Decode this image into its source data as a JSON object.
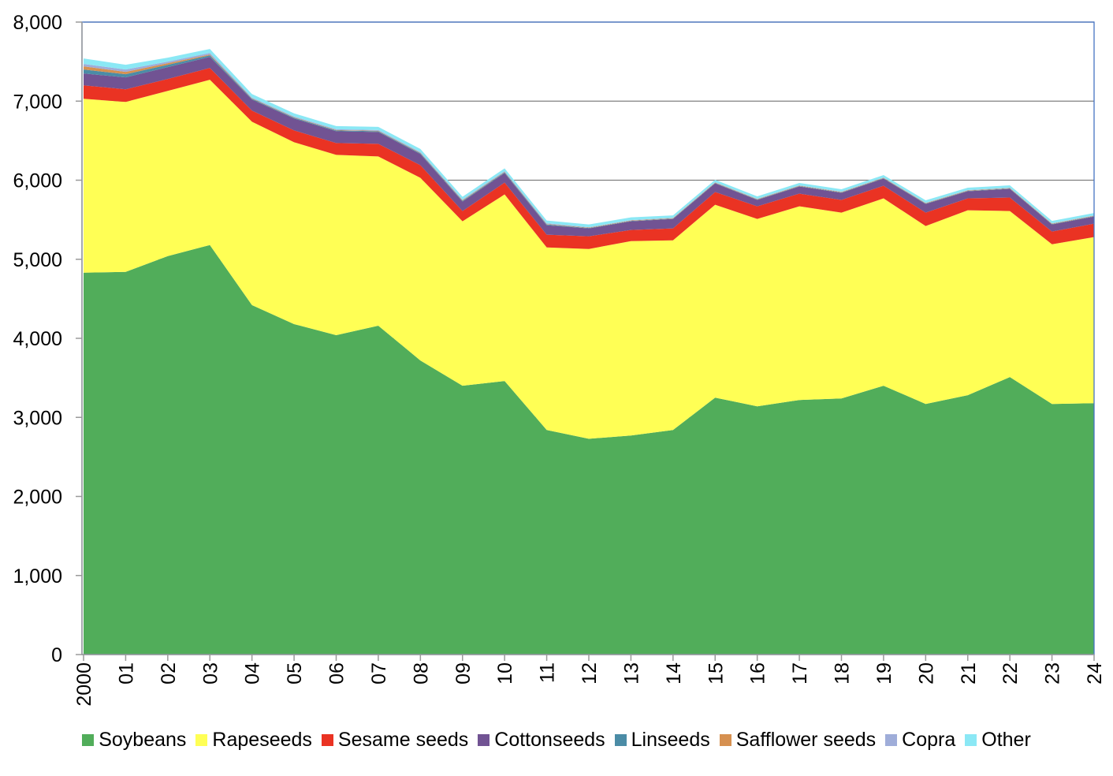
{
  "chart_data": {
    "type": "area",
    "stacked": true,
    "title": "",
    "xlabel": "",
    "ylabel": "",
    "x": [
      "2000",
      "01",
      "02",
      "03",
      "04",
      "05",
      "06",
      "07",
      "08",
      "09",
      "10",
      "11",
      "12",
      "13",
      "14",
      "15",
      "16",
      "17",
      "18",
      "19",
      "20",
      "21",
      "22",
      "23",
      "24"
    ],
    "ylim": [
      0,
      8000
    ],
    "yticks": [
      "0",
      "1,000",
      "2,000",
      "3,000",
      "4,000",
      "5,000",
      "6,000",
      "7,000",
      "8,000"
    ],
    "grid": true,
    "legend_position": "bottom",
    "series": [
      {
        "name": "Soybeans",
        "color": "#51ad5a",
        "values": [
          4830,
          4840,
          5040,
          5180,
          4420,
          4180,
          4040,
          4160,
          3720,
          3400,
          3460,
          2840,
          2730,
          2770,
          2840,
          3250,
          3140,
          3220,
          3240,
          3400,
          3170,
          3280,
          3510,
          3170,
          3180
        ]
      },
      {
        "name": "Rapeseeds",
        "color": "#ffff55",
        "values": [
          2200,
          2150,
          2090,
          2090,
          2320,
          2300,
          2280,
          2140,
          2310,
          2080,
          2360,
          2310,
          2400,
          2460,
          2400,
          2440,
          2370,
          2450,
          2350,
          2370,
          2250,
          2340,
          2100,
          2020,
          2100
        ]
      },
      {
        "name": "Sesame seeds",
        "color": "#ea3323",
        "values": [
          170,
          160,
          150,
          150,
          140,
          150,
          150,
          160,
          160,
          130,
          150,
          160,
          160,
          140,
          150,
          160,
          160,
          160,
          160,
          160,
          170,
          150,
          170,
          160,
          170
        ]
      },
      {
        "name": "Cottonseeds",
        "color": "#715393",
        "values": [
          150,
          150,
          150,
          140,
          140,
          150,
          150,
          150,
          140,
          120,
          120,
          120,
          100,
          110,
          120,
          110,
          80,
          90,
          90,
          90,
          110,
          90,
          110,
          90,
          90
        ]
      },
      {
        "name": "Linseeds",
        "color": "#4b8ca6",
        "values": [
          50,
          40,
          30,
          20,
          10,
          10,
          10,
          10,
          10,
          10,
          10,
          10,
          5,
          5,
          5,
          5,
          5,
          5,
          5,
          5,
          5,
          5,
          5,
          5,
          5
        ]
      },
      {
        "name": "Safflower seeds",
        "color": "#d69050",
        "values": [
          40,
          30,
          20,
          10,
          5,
          5,
          5,
          5,
          5,
          5,
          5,
          5,
          5,
          5,
          5,
          5,
          5,
          5,
          5,
          5,
          5,
          5,
          5,
          5,
          5
        ]
      },
      {
        "name": "Copra",
        "color": "#9fadd9",
        "values": [
          30,
          30,
          20,
          20,
          10,
          10,
          10,
          10,
          10,
          10,
          10,
          10,
          5,
          5,
          5,
          5,
          5,
          5,
          5,
          5,
          5,
          5,
          5,
          5,
          5
        ]
      },
      {
        "name": "Other",
        "color": "#8be8f5",
        "values": [
          70,
          60,
          50,
          50,
          45,
          40,
          40,
          40,
          40,
          35,
          35,
          35,
          35,
          35,
          30,
          30,
          30,
          30,
          30,
          30,
          30,
          30,
          30,
          30,
          30
        ]
      }
    ]
  }
}
